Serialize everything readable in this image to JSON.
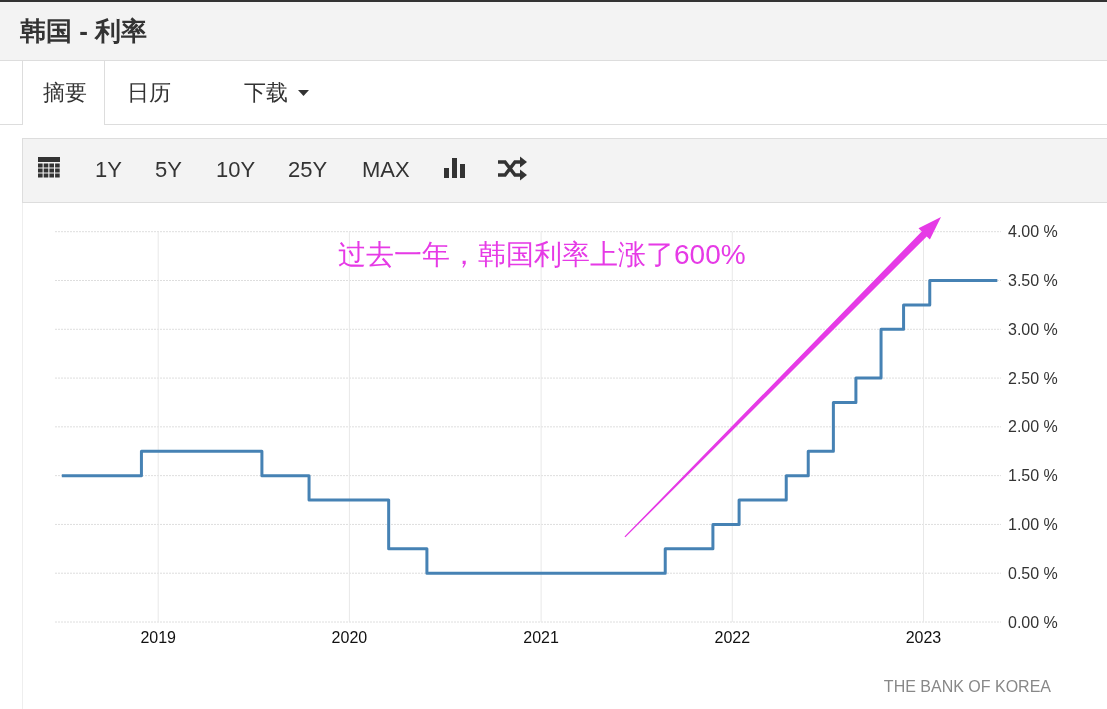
{
  "chart_data": {
    "type": "step",
    "title": "韩国 - 利率",
    "x": [
      "2018-07-01",
      "2018-11-30",
      "2019-07-18",
      "2019-10-16",
      "2020-03-16",
      "2020-05-28",
      "2021-08-26",
      "2021-11-25",
      "2022-01-14",
      "2022-04-14",
      "2022-05-26",
      "2022-07-13",
      "2022-08-25",
      "2022-10-12",
      "2022-11-24",
      "2023-01-13",
      "2023-05-22"
    ],
    "values": [
      1.5,
      1.75,
      1.5,
      1.25,
      0.75,
      0.5,
      0.75,
      1,
      1.25,
      1.5,
      1.75,
      2.25,
      2.5,
      3,
      3.25,
      3.5,
      3.5
    ],
    "color": "#4682b4",
    "xlim": [
      "2018-06-18",
      "2023-05-29"
    ],
    "xticks": [
      "2019",
      "2020",
      "2021",
      "2022",
      "2023"
    ],
    "ylim": [
      0,
      4
    ],
    "yticks": [
      {
        "value": 0,
        "label": "0.00 %"
      },
      {
        "value": 0.5,
        "label": "0.50 %"
      },
      {
        "value": 1,
        "label": "1.00 %"
      },
      {
        "value": 1.5,
        "label": "1.50 %"
      },
      {
        "value": 2,
        "label": "2.00 %"
      },
      {
        "value": 2.5,
        "label": "2.50 %"
      },
      {
        "value": 3,
        "label": "3.00 %"
      },
      {
        "value": 3.5,
        "label": "3.50 %"
      },
      {
        "value": 4,
        "label": "4.00 %"
      }
    ],
    "grid": true,
    "annotations": [
      "过去一年，韩国利率上涨了600%",
      "THE BANK OF KOREA",
      "摘要",
      "日历",
      "下载",
      "1Y",
      "5Y",
      "10Y",
      "25Y",
      "MAX"
    ]
  }
}
